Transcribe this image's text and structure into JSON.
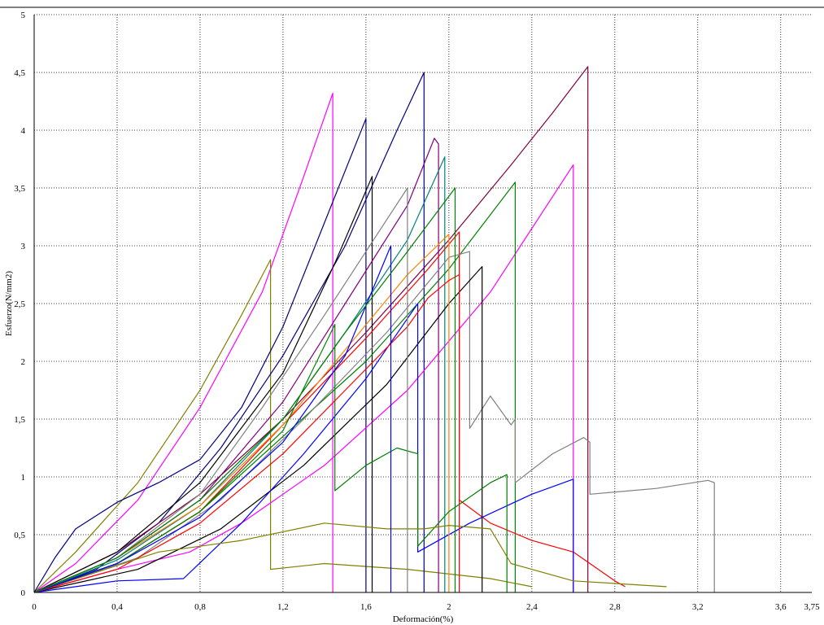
{
  "chart_data": {
    "type": "line",
    "title": "",
    "xlabel": "Deformación(%)",
    "ylabel": "Esfuerzo(N/mm2)",
    "xlim": [
      0,
      3.75
    ],
    "ylim": [
      0,
      5
    ],
    "grid": true,
    "x_ticks": [
      0,
      0.4,
      0.8,
      1.2,
      1.6,
      2,
      2.4,
      2.8,
      3.2,
      3.6,
      3.75
    ],
    "x_tick_labels": [
      "0",
      "0,4",
      "0,8",
      "1,2",
      "1,6",
      "2",
      "2,4",
      "2,8",
      "3,2",
      "3,6",
      "3,75"
    ],
    "y_ticks": [
      0,
      0.5,
      1,
      1.5,
      2,
      2.5,
      3,
      3.5,
      4,
      4.5,
      5
    ],
    "y_tick_labels": [
      "0",
      "0,5",
      "1",
      "1,5",
      "2",
      "2,5",
      "3",
      "3,5",
      "4",
      "4,5",
      "5"
    ],
    "series": [
      {
        "color": "#ff00ff",
        "x": [
          0,
          0.2,
          0.5,
          0.8,
          1.1,
          1.3,
          1.44,
          1.44
        ],
        "y": [
          0,
          0.25,
          0.8,
          1.6,
          2.6,
          3.6,
          4.32,
          0
        ]
      },
      {
        "color": "#808000",
        "x": [
          0,
          0.2,
          0.5,
          0.8,
          1.0,
          1.14,
          1.14,
          1.4,
          1.8,
          2.2,
          2.4
        ],
        "y": [
          0,
          0.35,
          0.95,
          1.75,
          2.4,
          2.88,
          0.2,
          0.25,
          0.2,
          0.12,
          0.05
        ]
      },
      {
        "color": "#000080",
        "x": [
          0,
          0.1,
          0.2,
          0.4,
          0.6,
          0.8,
          1.0,
          1.2,
          1.4,
          1.6,
          1.6
        ],
        "y": [
          0,
          0.3,
          0.55,
          0.78,
          0.95,
          1.15,
          1.6,
          2.3,
          3.2,
          4.1,
          0
        ]
      },
      {
        "color": "#000080",
        "x": [
          0,
          0.3,
          0.6,
          0.9,
          1.2,
          1.5,
          1.75,
          1.88,
          1.88
        ],
        "y": [
          0,
          0.2,
          0.6,
          1.25,
          2.05,
          3.0,
          4.0,
          4.5,
          0
        ]
      },
      {
        "color": "#800040",
        "x": [
          0,
          0.4,
          0.8,
          1.2,
          1.6,
          2.0,
          2.3,
          2.5,
          2.67,
          2.67
        ],
        "y": [
          0,
          0.35,
          0.85,
          1.5,
          2.25,
          3.05,
          3.7,
          4.15,
          4.55,
          0
        ]
      },
      {
        "color": "#ff00ff",
        "x": [
          0,
          0.4,
          0.75,
          1.0,
          1.4,
          1.8,
          2.2,
          2.6,
          2.6
        ],
        "y": [
          0,
          0.2,
          0.35,
          0.6,
          1.1,
          1.75,
          2.6,
          3.7,
          0
        ]
      },
      {
        "color": "#000000",
        "x": [
          0,
          0.4,
          0.8,
          1.2,
          1.45,
          1.63,
          1.63
        ],
        "y": [
          0,
          0.35,
          0.95,
          1.9,
          2.85,
          3.6,
          0
        ]
      },
      {
        "color": "#800080",
        "x": [
          0,
          0.4,
          0.8,
          1.2,
          1.5,
          1.8,
          1.93,
          1.95,
          1.95
        ],
        "y": [
          0,
          0.3,
          0.8,
          1.65,
          2.5,
          3.35,
          3.93,
          3.88,
          0
        ]
      },
      {
        "color": "#008080",
        "x": [
          0,
          0.4,
          0.8,
          1.2,
          1.5,
          1.8,
          1.98,
          1.98
        ],
        "y": [
          0,
          0.28,
          0.75,
          1.5,
          2.25,
          3.05,
          3.77,
          0
        ]
      },
      {
        "color": "#008000",
        "x": [
          0,
          0.4,
          0.8,
          1.2,
          1.6,
          2.0,
          2.32,
          2.32
        ],
        "y": [
          0,
          0.25,
          0.7,
          1.35,
          2.0,
          2.8,
          3.55,
          0
        ]
      },
      {
        "color": "#ff0000",
        "x": [
          0,
          0.4,
          0.8,
          1.2,
          1.6,
          1.9,
          2.05,
          2.05,
          2.2,
          2.4,
          2.6,
          2.8,
          2.85
        ],
        "y": [
          0,
          0.25,
          0.7,
          1.45,
          2.2,
          2.8,
          3.12,
          0.8,
          0.6,
          0.45,
          0.35,
          0.1,
          0.05
        ]
      },
      {
        "color": "#808080",
        "x": [
          0,
          0.5,
          0.9,
          1.3,
          1.7,
          2.0,
          2.1,
          2.1,
          2.2,
          2.3,
          2.32,
          2.32,
          2.5,
          2.65,
          2.68,
          2.68,
          3.0,
          3.25,
          3.28,
          3.28
        ],
        "y": [
          0,
          0.3,
          0.8,
          1.5,
          2.25,
          2.9,
          2.95,
          1.42,
          1.7,
          1.45,
          1.5,
          0.95,
          1.2,
          1.34,
          1.3,
          0.85,
          0.9,
          0.97,
          0.95,
          0
        ]
      },
      {
        "color": "#000000",
        "x": [
          0,
          0.5,
          0.9,
          1.3,
          1.7,
          2.0,
          2.16,
          2.16
        ],
        "y": [
          0,
          0.2,
          0.55,
          1.1,
          1.8,
          2.5,
          2.82,
          0
        ]
      },
      {
        "color": "#0000ff",
        "x": [
          0,
          0.4,
          0.72,
          1.0,
          1.3,
          1.6,
          1.85,
          1.85,
          2.1,
          2.4,
          2.6,
          2.6
        ],
        "y": [
          0,
          0.1,
          0.12,
          0.6,
          1.2,
          1.85,
          2.5,
          0.35,
          0.6,
          0.85,
          0.98,
          0
        ]
      },
      {
        "color": "#ff8000",
        "x": [
          0,
          0.4,
          0.8,
          1.2,
          1.5,
          1.8,
          2.0,
          2.0
        ],
        "y": [
          0,
          0.3,
          0.75,
          1.45,
          2.1,
          2.75,
          3.1,
          0
        ]
      },
      {
        "color": "#008000",
        "x": [
          0,
          0.4,
          0.8,
          1.2,
          1.45,
          1.45,
          1.6,
          1.75,
          1.85,
          1.85,
          2.0,
          2.2,
          2.28,
          2.28
        ],
        "y": [
          0,
          0.25,
          0.7,
          1.4,
          2.32,
          0.88,
          1.1,
          1.25,
          1.2,
          0.4,
          0.7,
          0.95,
          1.02,
          0
        ]
      },
      {
        "color": "#ff0000",
        "x": [
          0,
          0.4,
          0.8,
          1.2,
          1.5,
          1.8,
          1.9,
          2.0,
          2.05,
          2.05
        ],
        "y": [
          0,
          0.2,
          0.6,
          1.2,
          1.75,
          2.3,
          2.55,
          2.7,
          2.75,
          0
        ]
      },
      {
        "color": "#808000",
        "x": [
          0,
          0.6,
          1.0,
          1.4,
          1.7,
          1.88,
          2.0,
          2.2,
          2.3,
          2.6,
          3.05
        ],
        "y": [
          0,
          0.35,
          0.45,
          0.6,
          0.55,
          0.55,
          0.58,
          0.55,
          0.25,
          0.1,
          0.05
        ]
      },
      {
        "color": "#0000ff",
        "x": [
          0,
          0.4,
          0.8,
          1.2,
          1.5,
          1.72,
          1.72
        ],
        "y": [
          0,
          0.25,
          0.65,
          1.3,
          2.05,
          3.0,
          0
        ]
      },
      {
        "color": "#808080",
        "x": [
          0,
          0.4,
          0.8,
          1.1,
          1.4,
          1.6,
          1.8,
          1.8
        ],
        "y": [
          0,
          0.3,
          0.85,
          1.6,
          2.4,
          2.95,
          3.5,
          0
        ]
      },
      {
        "color": "#008000",
        "x": [
          0,
          0.4,
          0.8,
          1.2,
          1.5,
          1.8,
          2.03,
          2.03
        ],
        "y": [
          0,
          0.3,
          0.8,
          1.5,
          2.25,
          2.95,
          3.5,
          0
        ]
      }
    ]
  }
}
